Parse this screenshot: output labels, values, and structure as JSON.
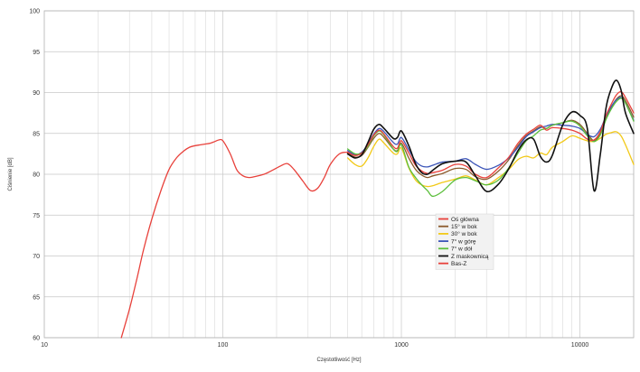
{
  "chart_data": {
    "type": "line",
    "title": "",
    "xlabel": "Częstotliwość [Hz]",
    "ylabel": "Ciśnienie [dB]",
    "xscale": "log",
    "xlim": [
      10,
      20000
    ],
    "ylim": [
      60,
      100
    ],
    "grid": true,
    "legend": "center-right",
    "x_ticks": [
      "10",
      "100",
      "1000",
      "10000"
    ],
    "y_ticks": [
      "60",
      "65",
      "70",
      "75",
      "80",
      "85",
      "90",
      "95",
      "100"
    ],
    "series": [
      {
        "name": "Oś główna",
        "color": "#e8413b",
        "x": [
          500,
          550,
          600,
          650,
          700,
          750,
          800,
          900,
          950,
          1000,
          1100,
          1200,
          1300,
          1400,
          1500,
          1700,
          2000,
          2300,
          2600,
          3000,
          3500,
          4000,
          4500,
          5000,
          5500,
          6000,
          6500,
          7000,
          8000,
          9000,
          10000,
          11000,
          12000,
          13000,
          14000,
          15000,
          16000,
          17000,
          18000,
          20000
        ],
        "y": [
          82.7,
          82.3,
          82.6,
          83.6,
          84.8,
          85.4,
          84.9,
          83.4,
          83.2,
          84.1,
          82.6,
          81.1,
          80.4,
          80.1,
          80.2,
          80.5,
          81.2,
          81.0,
          80.0,
          79.6,
          80.8,
          82.1,
          83.8,
          84.9,
          85.5,
          86.0,
          85.4,
          85.7,
          85.6,
          85.4,
          85.0,
          84.3,
          84.2,
          85.2,
          87.2,
          88.6,
          89.7,
          90.1,
          89.4,
          87.5
        ]
      },
      {
        "name": "15° w bok",
        "color": "#8b5a2b",
        "x": [
          500,
          550,
          600,
          650,
          700,
          750,
          800,
          900,
          950,
          1000,
          1100,
          1200,
          1300,
          1400,
          1500,
          1700,
          2000,
          2300,
          2600,
          3000,
          3500,
          4000,
          4500,
          5000,
          5500,
          6000,
          6500,
          7000,
          8000,
          9000,
          10000,
          11000,
          12000,
          13000,
          14000,
          15000,
          16000,
          17000,
          18000,
          20000
        ],
        "y": [
          82.6,
          82.1,
          82.3,
          83.3,
          84.4,
          85.0,
          84.5,
          83.1,
          82.9,
          83.8,
          82.0,
          80.6,
          79.9,
          79.6,
          79.8,
          80.1,
          80.7,
          80.6,
          79.7,
          79.4,
          80.4,
          81.8,
          83.5,
          84.7,
          85.3,
          85.8,
          85.6,
          86.0,
          86.3,
          86.6,
          86.1,
          85.0,
          84.1,
          85.0,
          86.8,
          88.2,
          89.2,
          89.6,
          89.0,
          87.0
        ]
      },
      {
        "name": "30° w bok",
        "color": "#f2c918",
        "x": [
          500,
          550,
          600,
          650,
          700,
          750,
          800,
          900,
          950,
          1000,
          1100,
          1200,
          1300,
          1400,
          1500,
          1700,
          2000,
          2300,
          2600,
          3000,
          3500,
          4000,
          4500,
          5000,
          5500,
          6000,
          6500,
          7000,
          8000,
          9000,
          10000,
          11000,
          12000,
          13000,
          14000,
          15000,
          16000,
          17000,
          18000,
          20000
        ],
        "y": [
          82.0,
          81.2,
          81.0,
          82.0,
          83.4,
          84.3,
          83.8,
          82.6,
          82.5,
          83.2,
          80.8,
          79.3,
          78.7,
          78.5,
          78.6,
          79.0,
          79.4,
          79.8,
          79.3,
          78.7,
          79.6,
          80.6,
          81.8,
          82.2,
          82.0,
          82.6,
          82.4,
          83.3,
          84.0,
          84.7,
          84.4,
          84.1,
          84.0,
          84.4,
          84.9,
          85.1,
          85.2,
          84.7,
          83.6,
          81.2
        ]
      },
      {
        "name": "7° w górę",
        "color": "#3c55b8",
        "x": [
          500,
          550,
          600,
          650,
          700,
          750,
          800,
          900,
          950,
          1000,
          1100,
          1200,
          1300,
          1400,
          1500,
          1700,
          2000,
          2300,
          2600,
          3000,
          3500,
          4000,
          4500,
          5000,
          5500,
          6000,
          6500,
          7000,
          8000,
          9000,
          10000,
          11000,
          12000,
          13000,
          14000,
          15000,
          16000,
          17000,
          18000,
          20000
        ],
        "y": [
          82.9,
          82.4,
          82.7,
          83.7,
          84.9,
          85.6,
          85.2,
          83.9,
          83.7,
          84.5,
          83.0,
          81.6,
          81.0,
          80.9,
          81.1,
          81.5,
          81.6,
          81.9,
          81.2,
          80.6,
          81.1,
          82.0,
          83.3,
          84.6,
          85.2,
          85.7,
          85.9,
          86.1,
          86.0,
          85.9,
          85.6,
          84.9,
          84.6,
          85.5,
          87.1,
          88.3,
          89.1,
          89.4,
          88.7,
          86.6
        ]
      },
      {
        "name": "7° w dół",
        "color": "#5cbf3c",
        "x": [
          500,
          550,
          600,
          650,
          700,
          750,
          800,
          900,
          950,
          1000,
          1100,
          1200,
          1300,
          1400,
          1500,
          1700,
          2000,
          2300,
          2600,
          3000,
          3500,
          4000,
          4500,
          5000,
          5500,
          6000,
          6500,
          7000,
          8000,
          9000,
          10000,
          11000,
          12000,
          13000,
          14000,
          15000,
          16000,
          17000,
          18000,
          20000
        ],
        "y": [
          83.1,
          82.5,
          82.6,
          83.4,
          84.7,
          85.3,
          84.8,
          83.1,
          82.8,
          83.6,
          80.9,
          79.6,
          78.7,
          78.0,
          77.3,
          77.9,
          79.3,
          79.6,
          79.2,
          78.7,
          79.3,
          80.8,
          82.6,
          84.1,
          84.7,
          85.4,
          85.6,
          86.0,
          86.3,
          86.5,
          85.9,
          84.7,
          84.0,
          84.8,
          86.7,
          88.0,
          88.9,
          89.3,
          88.7,
          86.5
        ]
      },
      {
        "name": "Z maskownicą",
        "color": "#111111",
        "x": [
          500,
          550,
          600,
          650,
          700,
          750,
          800,
          900,
          950,
          1000,
          1100,
          1200,
          1300,
          1400,
          1500,
          1700,
          2000,
          2300,
          2600,
          3000,
          3500,
          4000,
          4500,
          5000,
          5500,
          6000,
          6500,
          7000,
          8000,
          9000,
          10000,
          11000,
          12000,
          13000,
          14000,
          15000,
          16000,
          17000,
          18000,
          20000
        ],
        "y": [
          82.5,
          82.0,
          82.4,
          83.9,
          85.5,
          86.1,
          85.6,
          84.4,
          84.5,
          85.3,
          83.5,
          81.3,
          80.2,
          80.0,
          80.5,
          81.3,
          81.6,
          81.5,
          79.8,
          77.9,
          78.8,
          80.7,
          82.9,
          84.2,
          84.3,
          82.2,
          81.5,
          82.3,
          86.0,
          87.6,
          87.2,
          85.6,
          78.0,
          82.4,
          88.1,
          90.5,
          91.5,
          90.3,
          87.5,
          85.0
        ]
      },
      {
        "name": "Bas-Z",
        "color": "#e8413b",
        "x": [
          27,
          30,
          33,
          36,
          40,
          45,
          50,
          55,
          60,
          65,
          70,
          75,
          80,
          85,
          90,
          95,
          100,
          110,
          120,
          130,
          140,
          150,
          170,
          190,
          210,
          230,
          250,
          280,
          310,
          340,
          370,
          400,
          450,
          500
        ],
        "y": [
          60.0,
          63.5,
          67.2,
          70.8,
          74.5,
          78.0,
          80.6,
          82.0,
          82.8,
          83.3,
          83.5,
          83.6,
          83.7,
          83.8,
          84.0,
          84.2,
          84.1,
          82.5,
          80.5,
          79.8,
          79.6,
          79.7,
          80.0,
          80.5,
          81.0,
          81.3,
          80.6,
          79.2,
          78.0,
          78.3,
          79.6,
          81.2,
          82.5,
          82.7
        ]
      }
    ]
  }
}
